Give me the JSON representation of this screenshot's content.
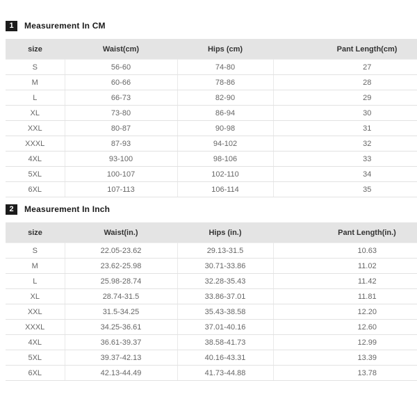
{
  "colors": {
    "badge_background": "#1c1c1c",
    "badge_text": "#ffffff",
    "table_header_background": "#e4e4e4",
    "row_border": "#e2e2e2",
    "cell_text": "#666666",
    "title_text": "#1a1a1a"
  },
  "sections": [
    {
      "badge": "1",
      "title": "Measurement In CM",
      "table": {
        "headers": [
          "size",
          "Waist(cm)",
          "Hips (cm)",
          "Pant Length(cm)"
        ],
        "rows": [
          [
            "S",
            "56-60",
            "74-80",
            "27"
          ],
          [
            "M",
            "60-66",
            "78-86",
            "28"
          ],
          [
            "L",
            "66-73",
            "82-90",
            "29"
          ],
          [
            "XL",
            "73-80",
            "86-94",
            "30"
          ],
          [
            "XXL",
            "80-87",
            "90-98",
            "31"
          ],
          [
            "XXXL",
            "87-93",
            "94-102",
            "32"
          ],
          [
            "4XL",
            "93-100",
            "98-106",
            "33"
          ],
          [
            "5XL",
            "100-107",
            "102-110",
            "34"
          ],
          [
            "6XL",
            "107-113",
            "106-114",
            "35"
          ]
        ]
      }
    },
    {
      "badge": "2",
      "title": "Measurement In Inch",
      "table": {
        "headers": [
          "size",
          "Waist(in.)",
          "Hips (in.)",
          "Pant Length(in.)"
        ],
        "rows": [
          [
            "S",
            "22.05-23.62",
            "29.13-31.5",
            "10.63"
          ],
          [
            "M",
            "23.62-25.98",
            "30.71-33.86",
            "11.02"
          ],
          [
            "L",
            "25.98-28.74",
            "32.28-35.43",
            "11.42"
          ],
          [
            "XL",
            "28.74-31.5",
            "33.86-37.01",
            "11.81"
          ],
          [
            "XXL",
            "31.5-34.25",
            "35.43-38.58",
            "12.20"
          ],
          [
            "XXXL",
            "34.25-36.61",
            "37.01-40.16",
            "12.60"
          ],
          [
            "4XL",
            "36.61-39.37",
            "38.58-41.73",
            "12.99"
          ],
          [
            "5XL",
            "39.37-42.13",
            "40.16-43.31",
            "13.39"
          ],
          [
            "6XL",
            "42.13-44.49",
            "41.73-44.88",
            "13.78"
          ]
        ]
      }
    }
  ]
}
